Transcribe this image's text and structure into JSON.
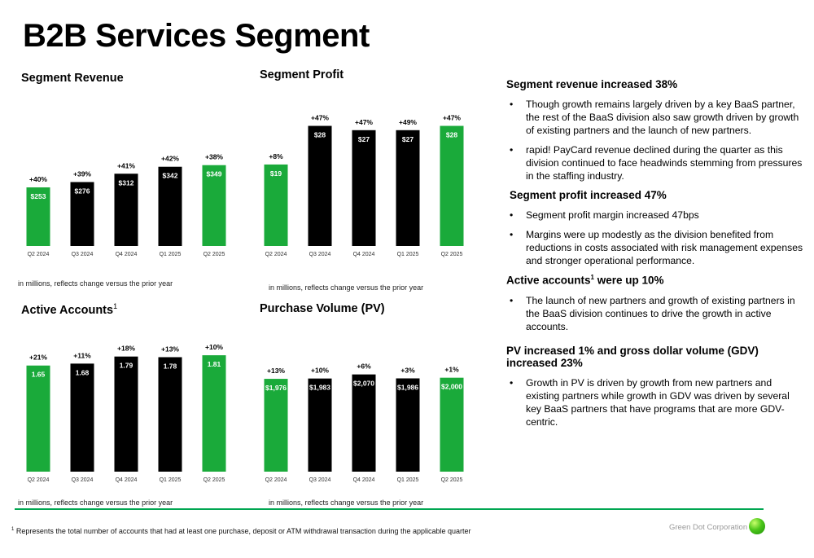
{
  "page": {
    "title": "B2B Services Segment"
  },
  "charts": [
    {
      "id": "revenue",
      "title": "Segment Revenue",
      "note": "in millions, reflects change versus the prior year",
      "chart_data": {
        "type": "bar",
        "categories": [
          "Q2 2024",
          "Q3 2024",
          "Q4 2024",
          "Q1 2025",
          "Q2 2025"
        ],
        "values": [
          253,
          276,
          312,
          342,
          349
        ],
        "labels": [
          "$253",
          "$276",
          "$312",
          "$342",
          "$349"
        ],
        "changes": [
          "+40%",
          "+39%",
          "+41%",
          "+42%",
          "+38%"
        ],
        "colors": [
          "#1aaa3a",
          "#000000",
          "#000000",
          "#000000",
          "#1aaa3a"
        ],
        "ylim": [
          0,
          450
        ]
      }
    },
    {
      "id": "profit",
      "title": "Segment Profit",
      "note": "in millions, reflects change versus the prior year",
      "chart_data": {
        "type": "bar",
        "categories": [
          "Q2 2024",
          "Q3 2024",
          "Q4 2024",
          "Q1 2025",
          "Q2 2025"
        ],
        "values": [
          19,
          28,
          27,
          27,
          28
        ],
        "labels": [
          "$19",
          "$28",
          "$27",
          "$27",
          "$28"
        ],
        "changes": [
          "+8%",
          "+47%",
          "+47%",
          "+49%",
          "+47%"
        ],
        "colors": [
          "#1aaa3a",
          "#000000",
          "#000000",
          "#000000",
          "#1aaa3a"
        ],
        "ylim": [
          0,
          30
        ]
      }
    },
    {
      "id": "accounts",
      "title": "Active Accounts",
      "title_sup": "1",
      "note": "in millions, reflects change versus the prior year",
      "chart_data": {
        "type": "bar",
        "categories": [
          "Q2 2024",
          "Q3 2024",
          "Q4 2024",
          "Q1 2025",
          "Q2 2025"
        ],
        "values": [
          1.65,
          1.68,
          1.79,
          1.78,
          1.81
        ],
        "labels": [
          "1.65",
          "1.68",
          "1.79",
          "1.78",
          "1.81"
        ],
        "changes": [
          "+21%",
          "+11%",
          "+18%",
          "+13%",
          "+10%"
        ],
        "colors": [
          "#1aaa3a",
          "#000000",
          "#000000",
          "#000000",
          "#1aaa3a"
        ],
        "ylim": [
          0,
          1.9
        ]
      }
    },
    {
      "id": "pv",
      "title": "Purchase Volume (PV)",
      "note": "in millions, reflects change versus the prior year",
      "chart_data": {
        "type": "bar",
        "categories": [
          "Q2 2024",
          "Q3 2024",
          "Q4 2024",
          "Q1 2025",
          "Q2 2025"
        ],
        "values": [
          1976,
          1983,
          2070,
          1986,
          2000
        ],
        "labels": [
          "$1,976",
          "$1,983",
          "$2,070",
          "$1,986",
          "$2,000"
        ],
        "changes": [
          "+13%",
          "+10%",
          "+6%",
          "+3%",
          "+1%"
        ],
        "colors": [
          "#1aaa3a",
          "#000000",
          "#000000",
          "#000000",
          "#1aaa3a"
        ],
        "ylim": [
          0,
          2220
        ]
      }
    }
  ],
  "commentary": {
    "revenue_heading": "Segment revenue increased 38%",
    "revenue_points": [
      "Though growth remains largely driven by a key BaaS partner, the rest of the BaaS division also saw growth driven by growth of existing partners and the launch of new partners.",
      "rapid! PayCard revenue declined during the quarter as this division continued to face headwinds stemming from pressures in the staffing industry."
    ],
    "profit_heading": "Segment profit increased 47%",
    "profit_points": [
      "Segment profit margin increased  47bps",
      "Margins were up modestly as the division benefited from reductions in costs associated with risk management expenses and stronger operational performance."
    ],
    "accounts_heading_pre": "Active accounts",
    "accounts_heading_sup": "1",
    "accounts_heading_post": " were up 10%",
    "accounts_points": [
      "The launch of new partners and growth of existing partners in the BaaS division continues to drive the growth in active accounts."
    ],
    "pv_heading": "PV increased 1% and gross dollar volume (GDV) increased 23%",
    "pv_points": [
      "Growth in PV is driven by growth from new partners and existing partners while growth in GDV was driven by several key BaaS partners that have programs that are more GDV-centric."
    ]
  },
  "footer": {
    "footnote_sup": "1",
    "footnote": " Represents the total number of accounts that had at least one purchase, deposit or ATM withdrawal transaction during the applicable quarter",
    "brand": "Green Dot Corporation"
  },
  "colors": {
    "green": "#1aaa3a",
    "black": "#000000",
    "divider": "#00a651"
  }
}
